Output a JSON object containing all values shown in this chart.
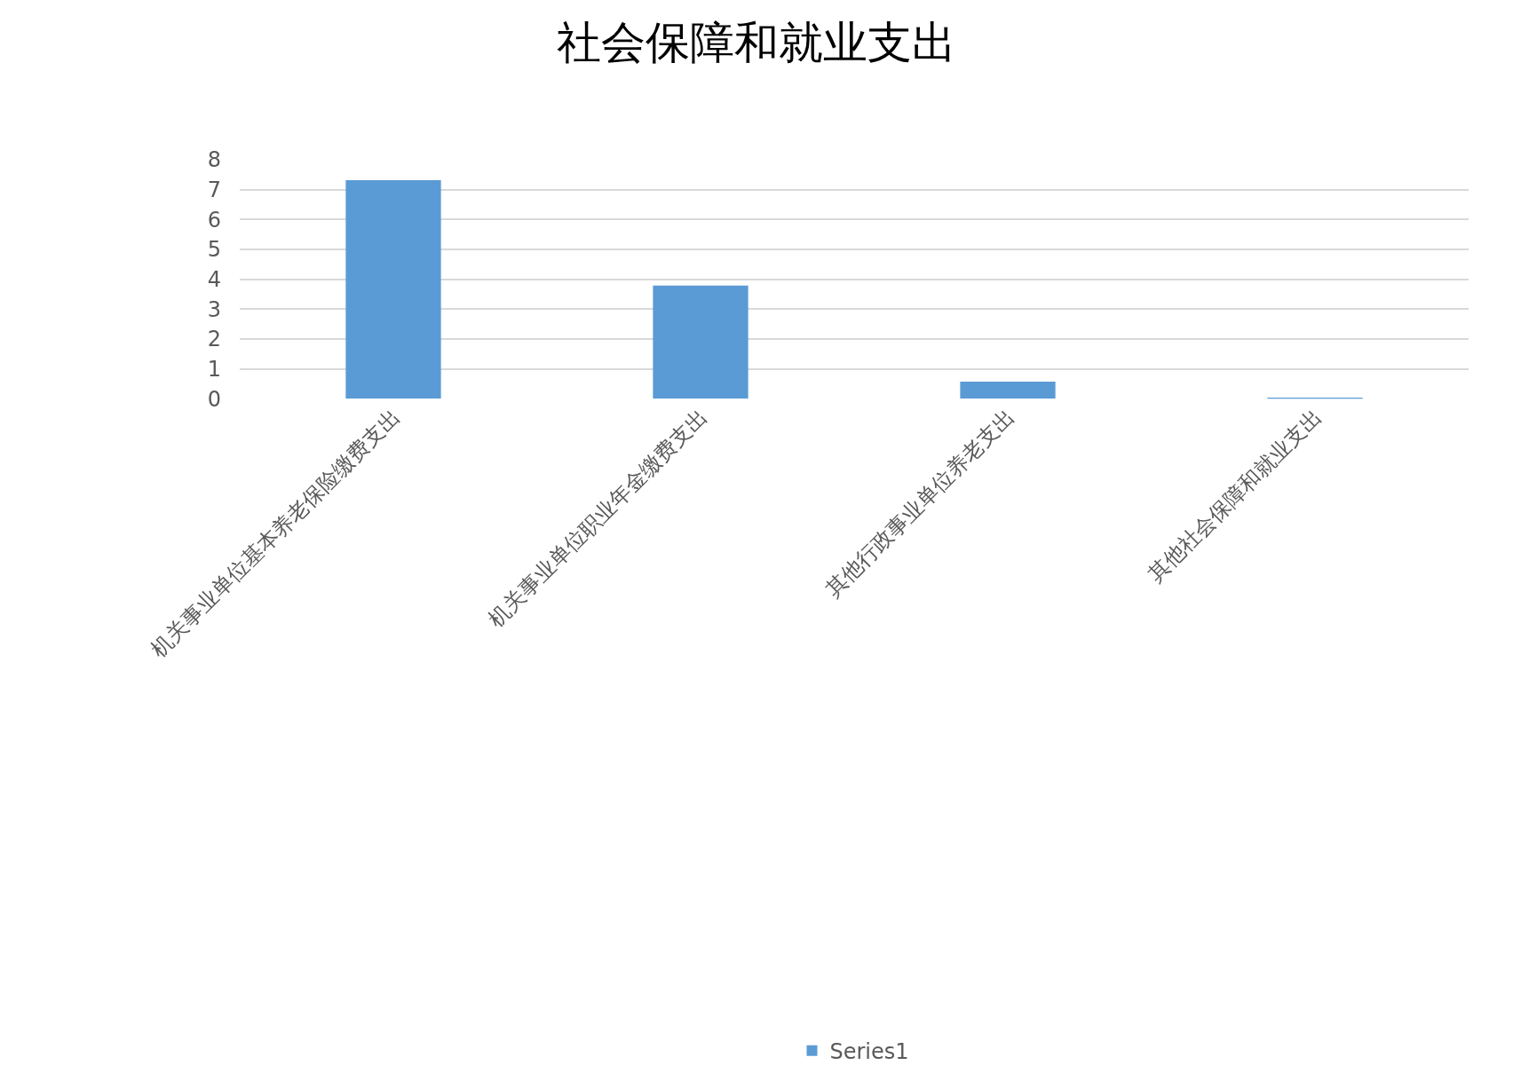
{
  "chart_data": {
    "type": "bar",
    "title": "社会保障和就业支出",
    "categories": [
      "机关事业单位基本养老保险缴费支出",
      "机关事业单位职业年金缴费支出",
      "其他行政事业单位养老支出",
      "其他社会保障和就业支出"
    ],
    "series": [
      {
        "name": "Series1",
        "color": "#5b9bd5",
        "values": [
          7.32,
          3.79,
          0.57,
          0.03
        ]
      }
    ],
    "ylim": [
      0,
      8
    ],
    "yticks": [
      0,
      1,
      2,
      3,
      4,
      5,
      6,
      7,
      8
    ],
    "grid": "y",
    "legend": "bottom"
  }
}
